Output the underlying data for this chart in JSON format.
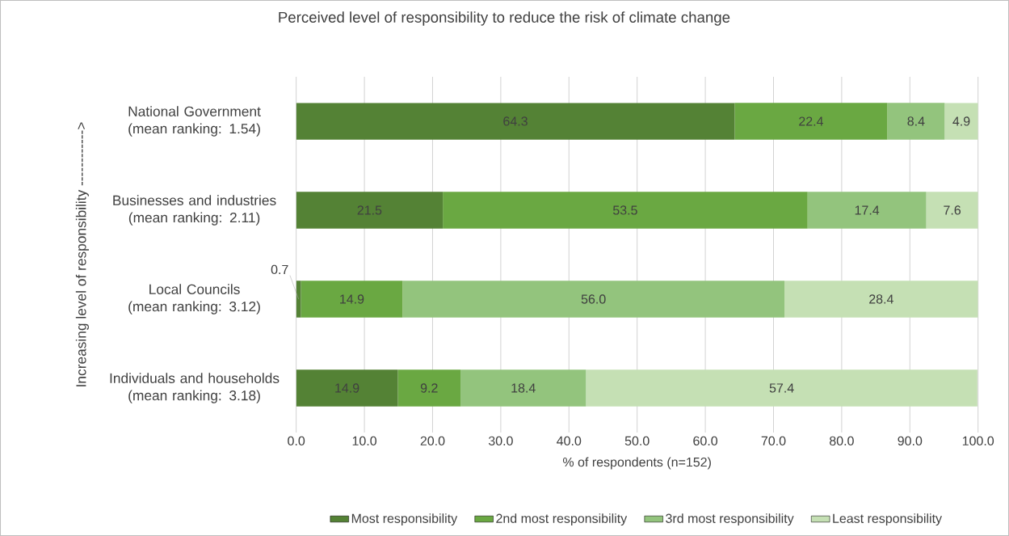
{
  "chart_data": {
    "type": "bar",
    "orientation": "horizontal",
    "stacked": true,
    "title": "Perceived level of responsibility to reduce the risk of climate change",
    "xlabel": "% of respondents (n=152)",
    "ylabel": "Increasing level of responsibility ------------>",
    "categories": [
      "National Government (mean ranking: 1.54)",
      "Businesses and industries (mean ranking: 2.11)",
      "Local Councils (mean ranking: 3.12)",
      "Individuals and households (mean ranking: 3.18)"
    ],
    "series": [
      {
        "name": "Most responsibility",
        "color": "#548235",
        "values": [
          64.3,
          21.5,
          0.7,
          14.9
        ]
      },
      {
        "name": "2nd most responsibility",
        "color": "#6aa842",
        "values": [
          22.4,
          53.5,
          14.9,
          9.2
        ]
      },
      {
        "name": "3rd most responsibility",
        "color": "#93c47d",
        "values": [
          8.4,
          17.4,
          56.0,
          18.4
        ],
        "value_labels": [
          "8.4",
          "17.4",
          "56.0",
          "18.4"
        ]
      },
      {
        "name": "Least responsibility",
        "color": "#c5e0b4",
        "values": [
          4.9,
          7.6,
          28.4,
          57.4
        ]
      }
    ],
    "xlim": [
      0,
      100
    ],
    "xticks": [
      {
        "value": 0,
        "label": "0.0"
      },
      {
        "value": 10,
        "label": "10.0"
      },
      {
        "value": 20,
        "label": "20.0"
      },
      {
        "value": 30,
        "label": "30.0"
      },
      {
        "value": 40,
        "label": "40.0"
      },
      {
        "value": 50,
        "label": "50.0"
      },
      {
        "value": 60,
        "label": "60.0"
      },
      {
        "value": 70,
        "label": "70.0"
      },
      {
        "value": 80,
        "label": "80.0"
      },
      {
        "value": 90,
        "label": "90.0"
      },
      {
        "value": 100,
        "label": "100.0"
      }
    ],
    "grid": "x",
    "legend": "bottom",
    "data_labels": true
  }
}
